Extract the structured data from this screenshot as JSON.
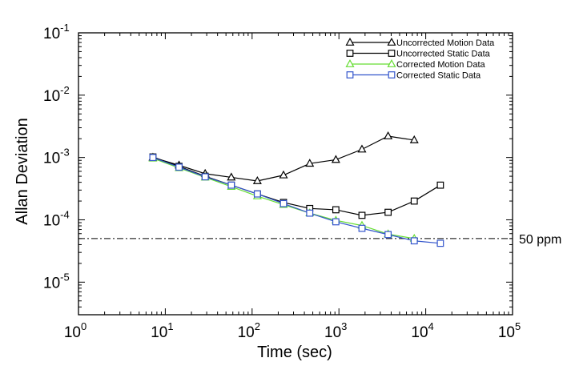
{
  "chart_data": {
    "type": "line",
    "xscale": "log",
    "yscale": "log",
    "title": "",
    "xlabel": "Time (sec)",
    "ylabel": "Allan Deviation",
    "xlim": [
      1,
      100000
    ],
    "ylim": [
      3e-06,
      0.1
    ],
    "x_major_ticks": [
      {
        "base": "10",
        "exp": "0",
        "value": 1
      },
      {
        "base": "10",
        "exp": "1",
        "value": 10
      },
      {
        "base": "10",
        "exp": "2",
        "value": 100
      },
      {
        "base": "10",
        "exp": "3",
        "value": 1000
      },
      {
        "base": "10",
        "exp": "4",
        "value": 10000
      },
      {
        "base": "10",
        "exp": "5",
        "value": 100000
      }
    ],
    "y_major_ticks": [
      {
        "base": "10",
        "exp": "-5",
        "value": 1e-05
      },
      {
        "base": "10",
        "exp": "-4",
        "value": 0.0001
      },
      {
        "base": "10",
        "exp": "-3",
        "value": 0.001
      },
      {
        "base": "10",
        "exp": "-2",
        "value": 0.01
      },
      {
        "base": "10",
        "exp": "-1",
        "value": 0.1
      }
    ],
    "grid": false,
    "legend_position": "top-right",
    "reference_line": {
      "value": 5e-05,
      "label": "50 ppm",
      "style": "dash-dot",
      "color": "#000000"
    },
    "series": [
      {
        "name": "Uncorrected Motion Data",
        "color": "#000000",
        "marker": "triangle",
        "x": [
          7.2,
          14.4,
          28.8,
          57.6,
          115,
          230,
          461,
          922,
          1843,
          3686,
          7373
        ],
        "y": [
          0.001,
          0.00075,
          0.00055,
          0.00048,
          0.00042,
          0.00052,
          0.0008,
          0.00092,
          0.00135,
          0.0022,
          0.0019
        ]
      },
      {
        "name": "Uncorrected Static Data",
        "color": "#000000",
        "marker": "square",
        "x": [
          7.2,
          14.4,
          28.8,
          57.6,
          115,
          230,
          461,
          922,
          1843,
          3686,
          7373,
          14746
        ],
        "y": [
          0.00102,
          0.00072,
          0.0005,
          0.00036,
          0.00026,
          0.00019,
          0.000152,
          0.000145,
          0.000118,
          0.000132,
          0.0002,
          0.00036
        ]
      },
      {
        "name": "Corrected Motion Data",
        "color": "#66dd33",
        "marker": "triangle",
        "x": [
          7.2,
          14.4,
          28.8,
          57.6,
          115,
          230,
          461,
          922,
          1843,
          3686,
          7373
        ],
        "y": [
          0.00097,
          0.00068,
          0.00048,
          0.00034,
          0.00024,
          0.000175,
          0.000128,
          9.8e-05,
          8.1e-05,
          5.9e-05,
          5e-05
        ]
      },
      {
        "name": "Corrected Static Data",
        "color": "#3355cc",
        "marker": "square",
        "x": [
          7.2,
          14.4,
          28.8,
          57.6,
          115,
          230,
          461,
          922,
          1843,
          3686,
          7373,
          14746
        ],
        "y": [
          0.001,
          0.0007,
          0.00049,
          0.00036,
          0.00026,
          0.000182,
          0.000128,
          9.3e-05,
          7.3e-05,
          5.8e-05,
          4.6e-05,
          4.2e-05
        ]
      }
    ]
  }
}
